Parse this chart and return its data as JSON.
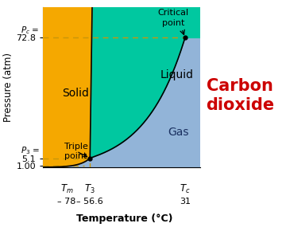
{
  "title": "Carbon\ndioxide",
  "title_color": "#cc0000",
  "xlabel": "Temperature (°C)",
  "ylabel": "Pressure (atm)",
  "bg_color": "#ffffff",
  "solid_color": "#f5a800",
  "liquid_color": "#00c8a0",
  "gas_color": "#92b4d8",
  "xmin": -100,
  "xmax": 45,
  "ymin": 0,
  "ymax": 90,
  "triple_T": -56.6,
  "triple_P": 5.1,
  "critical_T": 31,
  "critical_P": 72.8,
  "melt_T": -78,
  "P1": 1.0,
  "dashed_color": "#c8960a",
  "label_solid": "Solid",
  "label_liquid": "Liquid",
  "label_gas": "Gas",
  "label_triple": "Triple\npoint",
  "label_critical": "Critical\npoint"
}
